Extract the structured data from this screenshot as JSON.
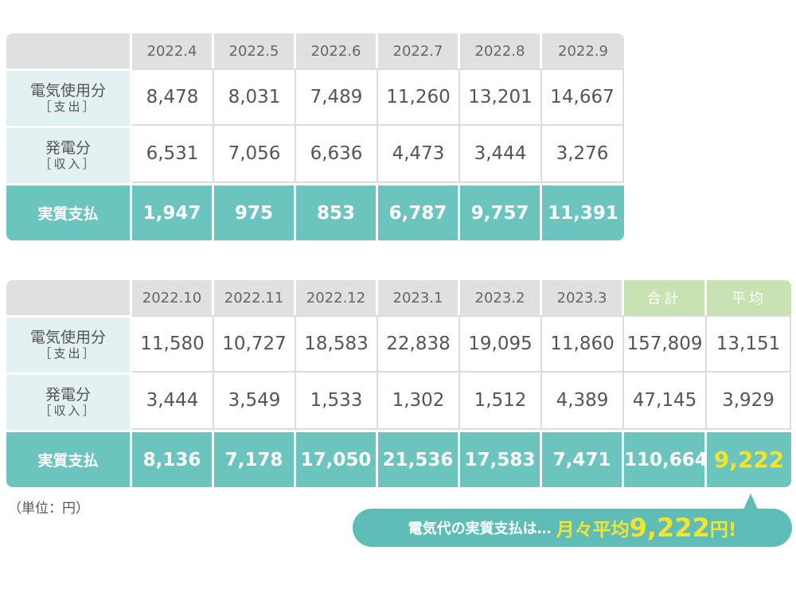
{
  "table1": {
    "months": [
      "2022.4",
      "2022.5",
      "2022.6",
      "2022.7",
      "2022.8",
      "2022.9"
    ],
    "usage_label": {
      "line1": "電気使用分",
      "line2": "［支出］"
    },
    "usage": [
      "8,478",
      "8,031",
      "7,489",
      "11,260",
      "13,201",
      "14,667"
    ],
    "generation_label": {
      "line1": "発電分",
      "line2": "［収入］"
    },
    "generation": [
      "6,531",
      "7,056",
      "6,636",
      "4,473",
      "3,444",
      "3,276"
    ],
    "net_label": "実質支払",
    "net": [
      "1,947",
      "975",
      "853",
      "6,787",
      "9,757",
      "11,391"
    ]
  },
  "table2": {
    "months": [
      "2022.10",
      "2022.11",
      "2022.12",
      "2023.1",
      "2023.2",
      "2023.3"
    ],
    "total_label": "合計",
    "average_label": "平均",
    "usage_label": {
      "line1": "電気使用分",
      "line2": "［支出］"
    },
    "usage": [
      "11,580",
      "10,727",
      "18,583",
      "22,838",
      "19,095",
      "11,860"
    ],
    "usage_total": "157,809",
    "usage_average": "13,151",
    "generation_label": {
      "line1": "発電分",
      "line2": "［収入］"
    },
    "generation": [
      "3,444",
      "3,549",
      "1,533",
      "1,302",
      "1,512",
      "4,389"
    ],
    "generation_total": "47,145",
    "generation_average": "3,929",
    "net_label": "実質支払",
    "net": [
      "8,136",
      "7,178",
      "17,050",
      "21,536",
      "17,583",
      "7,471"
    ],
    "net_total": "110,664",
    "net_average": "9,222"
  },
  "unit_note": "（単位：円）",
  "callout": {
    "lead": "電気代の実質支払は…",
    "emphasis": "月々平均",
    "amount": "9,222",
    "suffix": "円!"
  },
  "colors": {
    "teal": "#6cc4bf",
    "light_teal": "#e3f1f2",
    "green_header": "#c9e2b4",
    "yellow_highlight": "#f5e52a",
    "grey_header": "#e0e0e0"
  }
}
